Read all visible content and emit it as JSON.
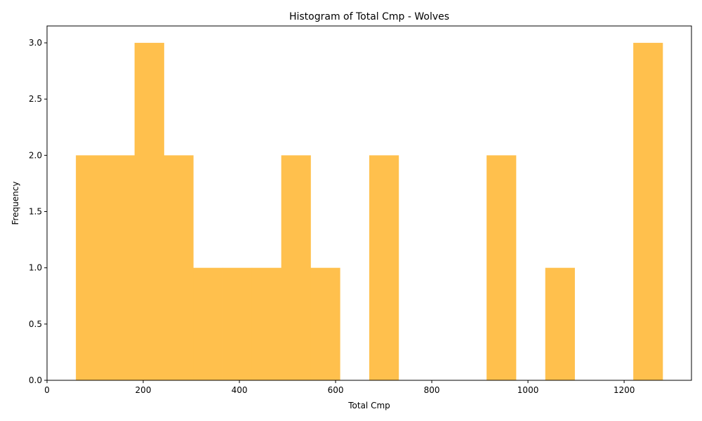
{
  "chart_data": {
    "type": "bar",
    "title": "Histogram of Total Cmp - Wolves",
    "xlabel": "Total Cmp",
    "ylabel": "Frequency",
    "xlim": [
      0,
      1340
    ],
    "ylim": [
      0,
      3.15
    ],
    "bar_color": "#ffc04d",
    "bins": [
      {
        "start": 60,
        "end": 121,
        "count": 2
      },
      {
        "start": 121,
        "end": 182,
        "count": 2
      },
      {
        "start": 182,
        "end": 243,
        "count": 3
      },
      {
        "start": 243,
        "end": 304,
        "count": 2
      },
      {
        "start": 304,
        "end": 365,
        "count": 1
      },
      {
        "start": 365,
        "end": 426,
        "count": 1
      },
      {
        "start": 426,
        "end": 487,
        "count": 1
      },
      {
        "start": 487,
        "end": 548,
        "count": 2
      },
      {
        "start": 548,
        "end": 609,
        "count": 1
      },
      {
        "start": 609,
        "end": 670,
        "count": 0
      },
      {
        "start": 670,
        "end": 731,
        "count": 2
      },
      {
        "start": 731,
        "end": 792,
        "count": 0
      },
      {
        "start": 792,
        "end": 853,
        "count": 0
      },
      {
        "start": 853,
        "end": 914,
        "count": 0
      },
      {
        "start": 914,
        "end": 975,
        "count": 2
      },
      {
        "start": 975,
        "end": 1036,
        "count": 0
      },
      {
        "start": 1036,
        "end": 1097,
        "count": 1
      },
      {
        "start": 1097,
        "end": 1158,
        "count": 0
      },
      {
        "start": 1158,
        "end": 1219,
        "count": 0
      },
      {
        "start": 1219,
        "end": 1280,
        "count": 3
      }
    ],
    "x_ticks": [
      {
        "value": 0,
        "label": "0"
      },
      {
        "value": 200,
        "label": "200"
      },
      {
        "value": 400,
        "label": "400"
      },
      {
        "value": 600,
        "label": "600"
      },
      {
        "value": 800,
        "label": "800"
      },
      {
        "value": 1000,
        "label": "1000"
      },
      {
        "value": 1200,
        "label": "1200"
      }
    ],
    "y_ticks": [
      {
        "value": 0,
        "label": "0.0"
      },
      {
        "value": 0.5,
        "label": "0.5"
      },
      {
        "value": 1,
        "label": "1.0"
      },
      {
        "value": 1.5,
        "label": "1.5"
      },
      {
        "value": 2,
        "label": "2.0"
      },
      {
        "value": 2.5,
        "label": "2.5"
      },
      {
        "value": 3,
        "label": "3.0"
      }
    ]
  }
}
